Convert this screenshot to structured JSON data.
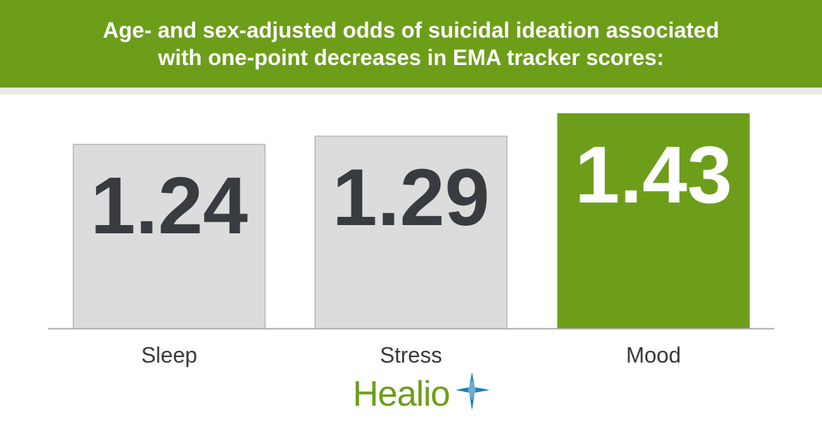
{
  "header": {
    "title_line1": "Age- and sex-adjusted odds of suicidal ideation associated",
    "title_line2": "with one-point decreases in EMA tracker scores:"
  },
  "chart_data": {
    "type": "bar",
    "categories": [
      "Sleep",
      "Stress",
      "Mood"
    ],
    "values": [
      1.24,
      1.29,
      1.43
    ],
    "data_labels": [
      "1.24",
      "1.29",
      "1.43"
    ],
    "title": "Age- and sex-adjusted odds of suicidal ideation associated with one-point decreases in EMA tracker scores:",
    "highlight_category": "Mood",
    "colors": {
      "bar": "#dcdcdc",
      "bar_border": "#9a9a9a",
      "bar_label": "#383c40",
      "highlight_bar": "#6d9e1a",
      "highlight_label": "#ffffff",
      "baseline": "#aaaaaa",
      "category_label": "#3a3a3a"
    },
    "grid": false
  },
  "brand": {
    "name": "Healio",
    "color": "#6d9e1a",
    "star_color": "#1b7fb8",
    "icon": "healio-star-icon"
  }
}
